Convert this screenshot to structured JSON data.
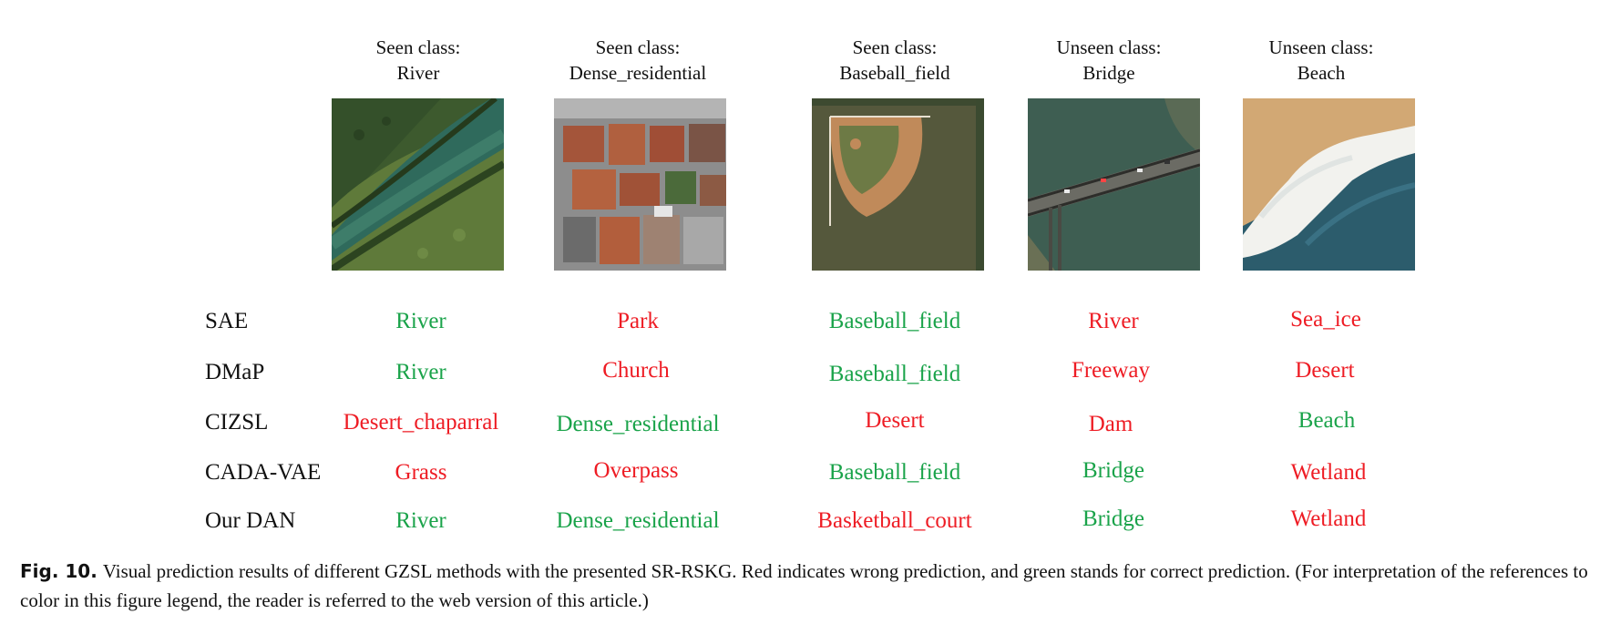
{
  "figure": {
    "columns": [
      {
        "kind": "Seen class:",
        "name": "River"
      },
      {
        "kind": "Seen class:",
        "name": "Dense_residential"
      },
      {
        "kind": "Seen class:",
        "name": "Baseball_field"
      },
      {
        "kind": "Unseen class:",
        "name": "Bridge"
      },
      {
        "kind": "Unseen class:",
        "name": "Beach"
      }
    ],
    "rows": [
      {
        "method": "SAE",
        "predictions": [
          {
            "label": "River",
            "correct": true
          },
          {
            "label": "Park",
            "correct": false
          },
          {
            "label": "Baseball_field",
            "correct": true
          },
          {
            "label": "River",
            "correct": false
          },
          {
            "label": "Sea_ice",
            "correct": false
          }
        ]
      },
      {
        "method": "DMaP",
        "predictions": [
          {
            "label": "River",
            "correct": true
          },
          {
            "label": "Church",
            "correct": false
          },
          {
            "label": "Baseball_field",
            "correct": true
          },
          {
            "label": "Freeway",
            "correct": false
          },
          {
            "label": "Desert",
            "correct": false
          }
        ]
      },
      {
        "method": "CIZSL",
        "predictions": [
          {
            "label": "Desert_chaparral",
            "correct": false
          },
          {
            "label": "Dense_residential",
            "correct": true
          },
          {
            "label": "Desert",
            "correct": false
          },
          {
            "label": "Dam",
            "correct": false
          },
          {
            "label": "Beach",
            "correct": true
          }
        ]
      },
      {
        "method": "CADA-VAE",
        "predictions": [
          {
            "label": "Grass",
            "correct": false
          },
          {
            "label": "Overpass",
            "correct": false
          },
          {
            "label": "Baseball_field",
            "correct": true
          },
          {
            "label": "Bridge",
            "correct": true
          },
          {
            "label": "Wetland",
            "correct": false
          }
        ]
      },
      {
        "method": "Our DAN",
        "predictions": [
          {
            "label": "River",
            "correct": true
          },
          {
            "label": "Dense_residential",
            "correct": true
          },
          {
            "label": "Basketball_court",
            "correct": false
          },
          {
            "label": "Bridge",
            "correct": true
          },
          {
            "label": "Wetland",
            "correct": false
          }
        ]
      }
    ],
    "colors": {
      "correct": "#1aa34a",
      "wrong": "#ee1c24"
    }
  },
  "caption": {
    "label": "Fig. 10.",
    "text": "Visual prediction results of different GZSL methods with the presented SR-RSKG. Red indicates wrong prediction, and green stands for correct prediction. (For interpretation of the references to color in this figure legend, the reader is referred to the web version of this article.)"
  }
}
